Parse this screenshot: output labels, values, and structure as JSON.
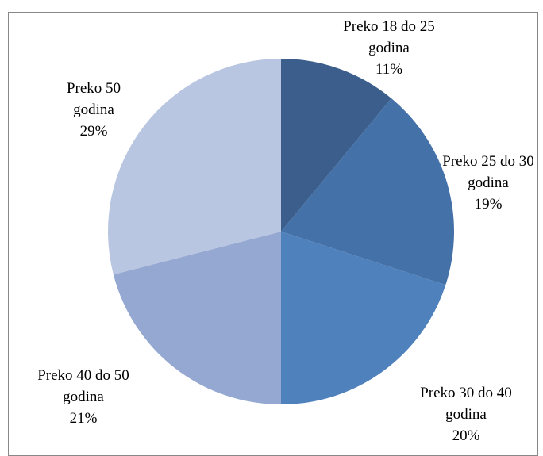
{
  "chart_data": {
    "type": "pie",
    "categories": [
      "Preko 18 do 25 godina",
      "Preko 25 do 30 godina",
      "Preko 30 do 40 godina",
      "Preko 40 do 50 godina",
      "Preko 50 godina"
    ],
    "values": [
      11,
      19,
      20,
      21,
      29
    ],
    "value_labels": [
      "11%",
      "19%",
      "20%",
      "21%",
      "29%"
    ],
    "colors": [
      "#3b5e8c",
      "#4472a8",
      "#4f81bd",
      "#95a8d1",
      "#b9c6e1"
    ]
  }
}
